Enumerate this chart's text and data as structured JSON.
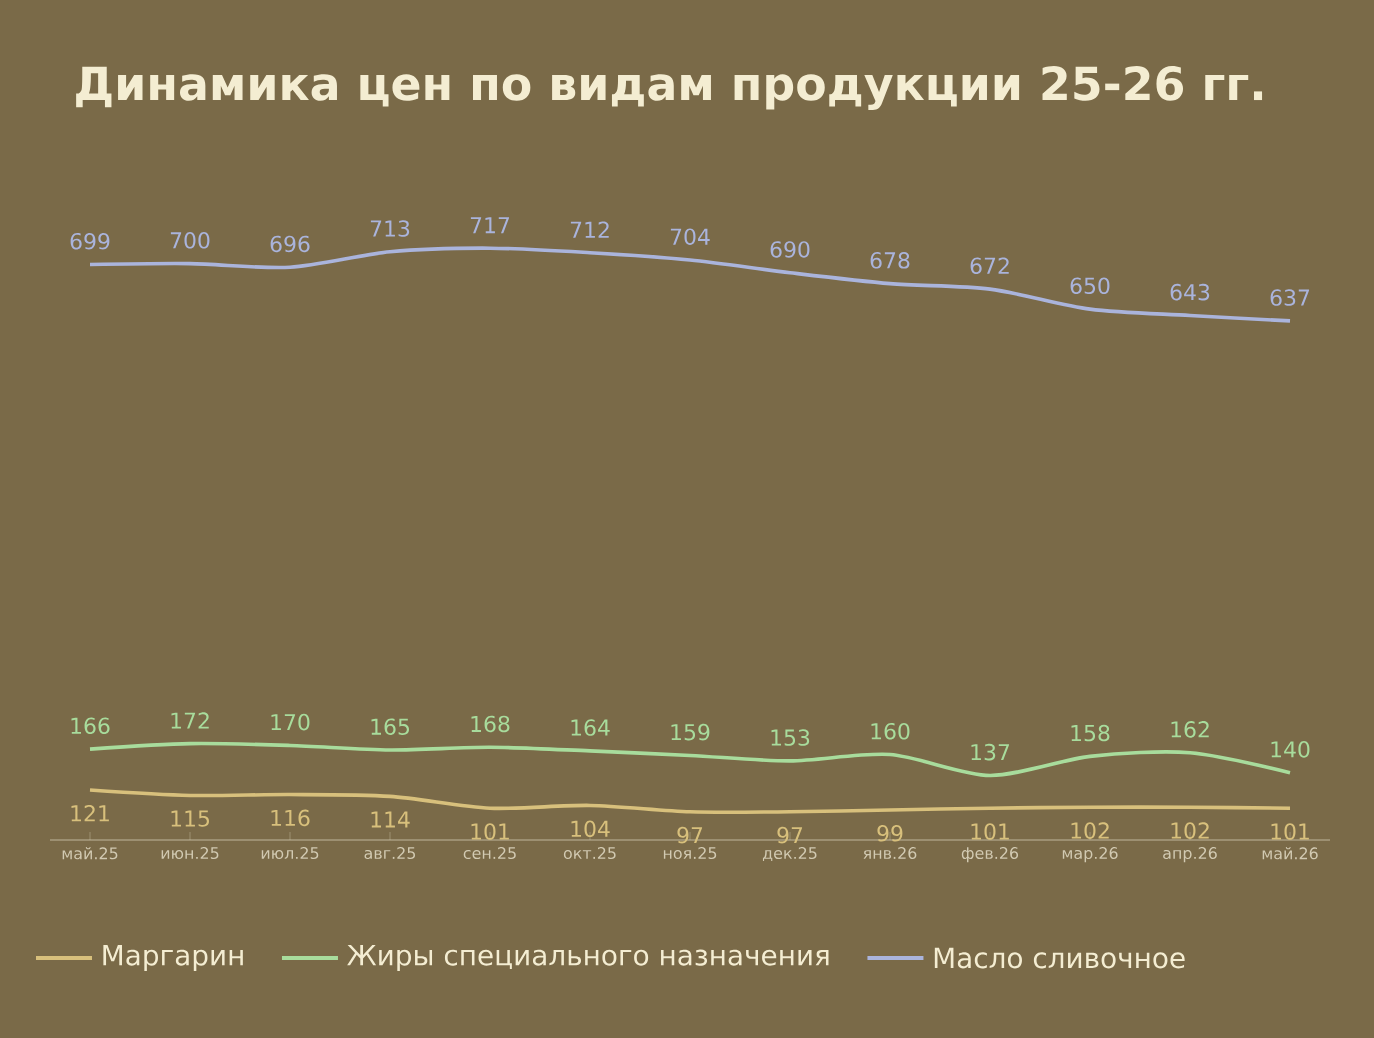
{
  "chart_data": {
    "type": "line",
    "title": "Динамика цен по видам продукции 25-26 гг.",
    "categories": [
      "май.25",
      "июн.25",
      "июл.25",
      "авг.25",
      "сен.25",
      "окт.25",
      "ноя.25",
      "дек.25",
      "янв.26",
      "фев.26",
      "мар.26",
      "апр.26",
      "май.26"
    ],
    "series": [
      {
        "name": "Маргарин",
        "color": "#d8c07c",
        "values": [
          121,
          115,
          116,
          114,
          101,
          104,
          97,
          97,
          99,
          101,
          102,
          102,
          101
        ]
      },
      {
        "name": "Жиры специального назначения",
        "color": "#a8dc9c",
        "values": [
          166,
          172,
          170,
          165,
          168,
          164,
          159,
          153,
          160,
          137,
          158,
          162,
          140
        ]
      },
      {
        "name": "Масло сливочное",
        "color": "#aab4dc",
        "values": [
          699,
          700,
          696,
          713,
          717,
          712,
          704,
          690,
          678,
          672,
          650,
          643,
          637
        ]
      }
    ],
    "data_labels": true,
    "tick_labels": "x",
    "legend": "bottom",
    "marker": "none",
    "line_style": "solid",
    "grid": false
  }
}
